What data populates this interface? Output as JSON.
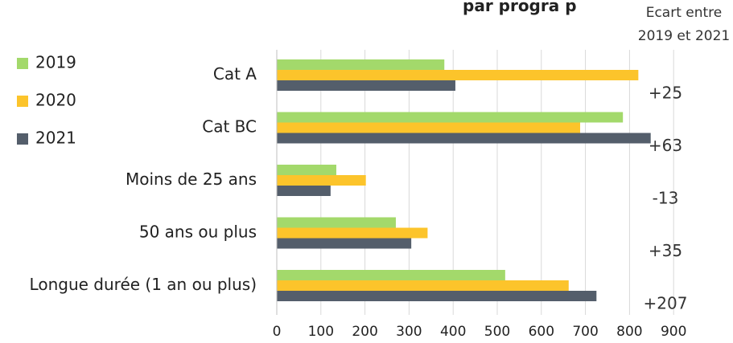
{
  "chart_data": {
    "type": "bar",
    "orientation": "horizontal",
    "title_fragment": "par progra     p",
    "categories": [
      "Cat A",
      "Cat BC",
      "Moins de 25 ans",
      "50 ans ou plus",
      "Longue durée (1 an ou plus)"
    ],
    "series": [
      {
        "name": "2019",
        "color": "#a3d96b",
        "values": [
          380,
          785,
          135,
          270,
          518
        ]
      },
      {
        "name": "2020",
        "color": "#fcc42b",
        "values": [
          820,
          688,
          202,
          342,
          662
        ]
      },
      {
        "name": "2021",
        "color": "#545e6b",
        "values": [
          405,
          848,
          122,
          305,
          725
        ]
      }
    ],
    "xlim": [
      0,
      900
    ],
    "xticks": [
      0,
      100,
      200,
      300,
      400,
      500,
      600,
      700,
      800,
      900
    ],
    "grid": true,
    "legend_position": "left",
    "ecart": {
      "header_line1": "Ecart entre",
      "header_line2": "2019 et 2021",
      "values": [
        "+25",
        "+63",
        "-13",
        "+35",
        "+207"
      ]
    }
  }
}
